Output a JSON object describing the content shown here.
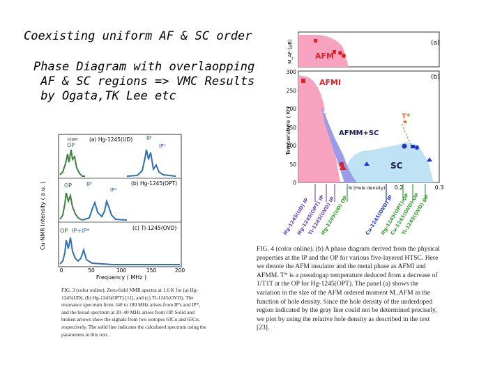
{
  "slide": {
    "title": "Coexisting uniform AF & SC order",
    "subtitle_lines": [
      "Phase Diagram with overlaopping",
      " AF & SC regions => VMC Results",
      " by Ogata,TK Lee etc"
    ]
  },
  "fig3": {
    "ylabel": "Cu-NMR Intensity ( a.u. )",
    "xlabel": "Frequency ( MHz )",
    "xticks": [
      "0",
      "50",
      "100",
      "150",
      "200"
    ],
    "panels": [
      {
        "label": "(a) Hg-1245(UD)",
        "tags": [
          "OP",
          "IP",
          "IP*",
          "½(OP)"
        ]
      },
      {
        "label": "(b) Hg-1245(OPT)",
        "tags": [
          "OP",
          "IP",
          "IP*"
        ]
      },
      {
        "label": "(c) Tl-1245(OVD)",
        "tags": [
          "OP",
          "IP+IP*"
        ]
      }
    ],
    "caption": "FIG. 3 (color online). Zero-field NMR spectra at 1.6 K for (a) Hg-1245(UD), (b) Hg-1245(OPT) [11], and (c) Tl-1245(OVD). The resonance spectrum from 140 to 180 MHz arises from IP's and IP*, and the broad spectrum at 20–40 MHz arises from OP. Solid and broken arrows show the signals from two isotopes 63Cu and 65Cu, respectively. The solid line indicates the calculated spectrum using the parameters in this text."
  },
  "fig4": {
    "panel_a": {
      "label": "(a)",
      "ylabel": "M_AF (μB)",
      "region": "AFM"
    },
    "panel_b": {
      "label": "(b)",
      "ylabel": "Temperature ( K )",
      "xlabel": "N (Hole density)",
      "yticks": [
        "0",
        "50",
        "100",
        "150",
        "200",
        "250",
        "300"
      ],
      "xticks": [
        "0.2",
        "0.3"
      ],
      "regions": [
        "AFMI",
        "AFMM",
        "AFMM+SC",
        "SC",
        "T*"
      ],
      "samples": [
        "Hg-1245(UD) IP",
        "Hg-1245(OPT) IP",
        "Tl-1245(OVD) IP",
        "Hg-1245(UD) OP",
        "Cu-1245(OVD) IP",
        "Hg-1245(OPT) OP",
        "Cu-1245(OVD) OP",
        "Tl-1245(OVD) OP"
      ]
    },
    "caption": "FIG. 4 (color online). (b) A phase diagram derived from the physical properties at the IP and the OP for various five-layered HTSC. Here we denote the AFM insulator and the metal phase as AFMI and AFMM. T* is a pseudogap temperature deduced from a decrease of 1/T1T at the OP for Hg-1245(OPT). The panel (a) shows the variation in the size of the AFM ordered moment M_AFM as the function of hole density. Since the hole density of the underdoped region indicated by the gray line could not be determined precisely, we plot by using the relative hole density as described in the text [23]."
  },
  "colors": {
    "afm_region": "#f7a3c0",
    "sc_region": "#bfe3f4",
    "afmm_region": "#9b9ce8",
    "red_marker": "#e0202a",
    "blue_marker": "#2233cc",
    "green_marker": "#30a030",
    "spectrum_green": "#3f7f3f",
    "spectrum_blue": "#2f6fb0"
  }
}
